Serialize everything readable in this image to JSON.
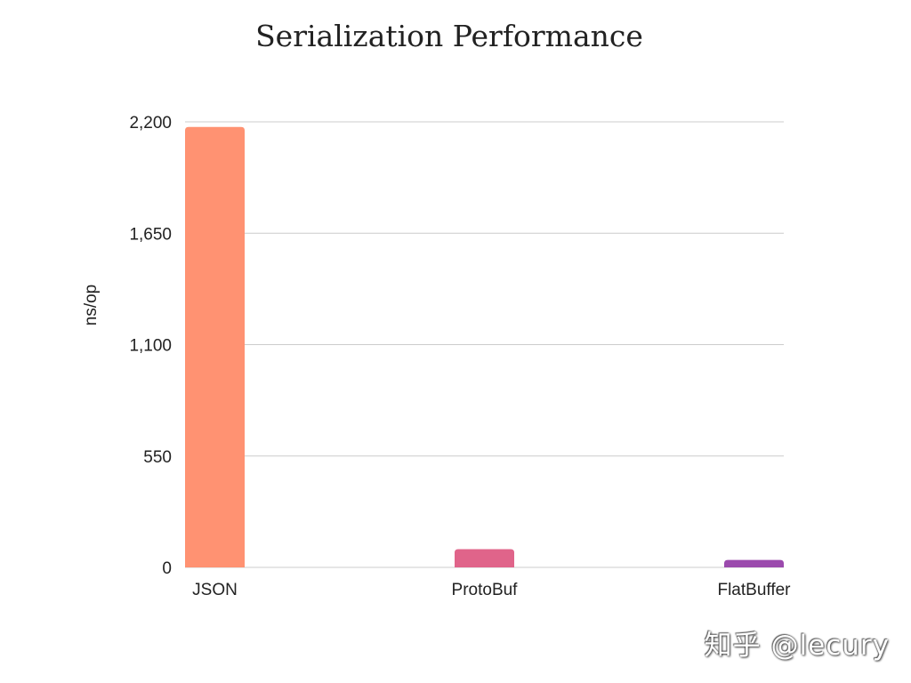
{
  "chart_data": {
    "type": "bar",
    "title": "Serialization Performance",
    "xlabel": "",
    "ylabel": "ns/op",
    "categories": [
      "JSON",
      "ProtoBuf",
      "FlatBuffer"
    ],
    "values": [
      2175,
      90,
      37
    ],
    "ylim": [
      0,
      2200
    ],
    "yticks": [
      0,
      550,
      1100,
      1650,
      2200
    ],
    "ytick_labels": [
      "0",
      "550",
      "1,100",
      "1,650",
      "2,200"
    ],
    "bar_colors": [
      "#ff9272",
      "#e0648a",
      "#9b4aad"
    ],
    "grid": true,
    "legend": "none"
  },
  "watermark": "知乎 @lecury",
  "colors": {
    "grid": "#cccccc",
    "text": "#222222"
  }
}
